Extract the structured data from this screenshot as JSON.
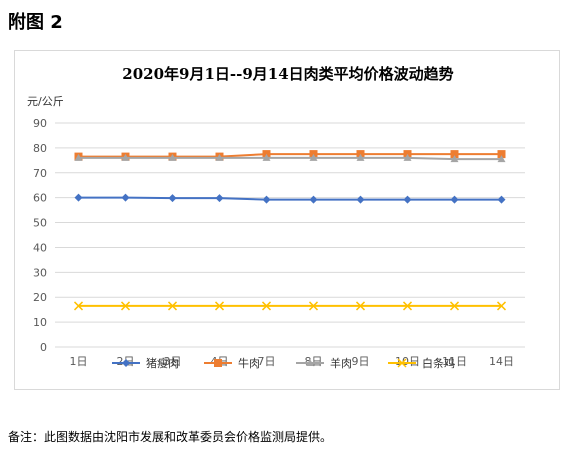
{
  "figure_label": "附图 2",
  "note": "备注：此图数据由沈阳市发展和改革委员会价格监测局提供。",
  "chart_data": {
    "type": "line",
    "title": "2020年9月1日--9月14日肉类平均价格波动趋势",
    "ylabel": "元/公斤",
    "xlabel": "",
    "categories": [
      "1日",
      "2日",
      "3日",
      "4日",
      "7日",
      "8日",
      "9日",
      "10日",
      "11日",
      "14日"
    ],
    "ylim": [
      0,
      90
    ],
    "yticks": [
      0,
      10,
      20,
      30,
      40,
      50,
      60,
      70,
      80,
      90
    ],
    "grid": true,
    "legend": "bottom",
    "series": [
      {
        "name": "猪瘦肉",
        "color": "#4472C4",
        "marker": "diamond",
        "values": [
          60,
          60,
          59.8,
          59.8,
          59.2,
          59.2,
          59.2,
          59.2,
          59.2,
          59.2
        ]
      },
      {
        "name": "牛肉",
        "color": "#ED7D31",
        "marker": "square",
        "values": [
          76.5,
          76.5,
          76.5,
          76.5,
          77.5,
          77.5,
          77.5,
          77.5,
          77.5,
          77.5
        ]
      },
      {
        "name": "羊肉",
        "color": "#A5A5A5",
        "marker": "triangle",
        "values": [
          76,
          76,
          76,
          76,
          76,
          76,
          76,
          76,
          75.5,
          75.5
        ]
      },
      {
        "name": "白条鸡",
        "color": "#FFC000",
        "marker": "x",
        "values": [
          16.5,
          16.5,
          16.5,
          16.5,
          16.5,
          16.5,
          16.5,
          16.5,
          16.5,
          16.5
        ]
      }
    ]
  }
}
